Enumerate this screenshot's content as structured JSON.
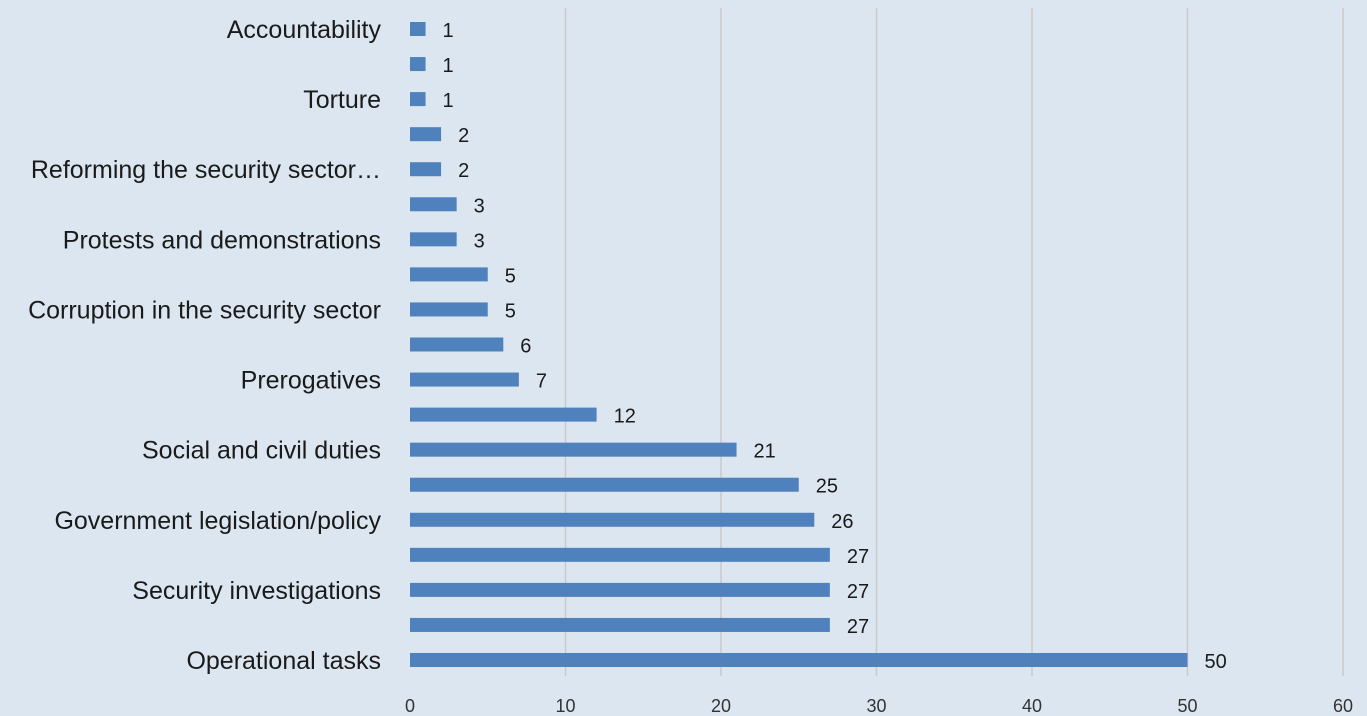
{
  "chart_data": {
    "type": "bar",
    "orientation": "horizontal",
    "title": "",
    "xlabel": "",
    "ylabel": "",
    "xlim": [
      0,
      60
    ],
    "xticks": [
      0,
      10,
      20,
      30,
      40,
      50,
      60
    ],
    "grid": "vertical",
    "legend": "none",
    "bar_color": "#4f81bd",
    "background_color": "#dce6f1",
    "bars": [
      {
        "label": "Accountability",
        "value": 1
      },
      {
        "label": "",
        "value": 1
      },
      {
        "label": "Torture",
        "value": 1
      },
      {
        "label": "",
        "value": 2
      },
      {
        "label": "Reforming the security sector…",
        "value": 2
      },
      {
        "label": "",
        "value": 3
      },
      {
        "label": "Protests and demonstrations",
        "value": 3
      },
      {
        "label": "",
        "value": 5
      },
      {
        "label": "Corruption in the security sector",
        "value": 5
      },
      {
        "label": "",
        "value": 6
      },
      {
        "label": "Prerogatives",
        "value": 7
      },
      {
        "label": "",
        "value": 12
      },
      {
        "label": "Social and civil duties",
        "value": 21
      },
      {
        "label": "",
        "value": 25
      },
      {
        "label": "Government legislation/policy",
        "value": 26
      },
      {
        "label": "",
        "value": 27
      },
      {
        "label": "Security investigations",
        "value": 27
      },
      {
        "label": "",
        "value": 27
      },
      {
        "label": "Operational tasks",
        "value": 50
      }
    ]
  }
}
